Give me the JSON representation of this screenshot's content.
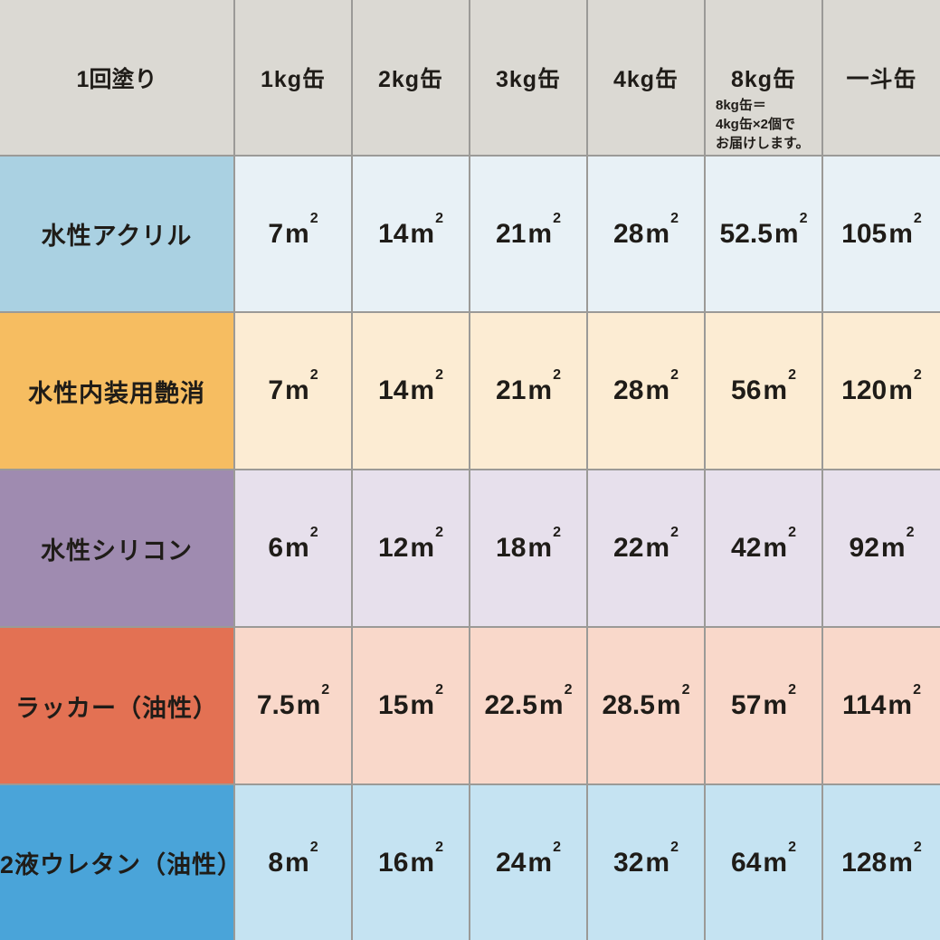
{
  "table": {
    "corner_label": "1回塗り",
    "unit": {
      "base": "m",
      "sup": "2"
    },
    "columns": [
      {
        "label": "1kg缶"
      },
      {
        "label": "2kg缶"
      },
      {
        "label": "3kg缶"
      },
      {
        "label": "4kg缶"
      },
      {
        "label": "8kg缶",
        "note_lines": [
          "8kg缶＝",
          "4kg缶×2個で",
          "お届けします。"
        ]
      },
      {
        "label": "一斗缶"
      }
    ],
    "rows": [
      {
        "label": "水性アクリル",
        "label_bg": "#aad1e2",
        "cell_bg": "#e8f1f6",
        "values": [
          "7",
          "14",
          "21",
          "28",
          "52.5",
          "105"
        ]
      },
      {
        "label": "水性内装用艶消",
        "label_bg": "#f6bd61",
        "cell_bg": "#fcecd3",
        "values": [
          "7",
          "14",
          "21",
          "28",
          "56",
          "120"
        ]
      },
      {
        "label": "水性シリコン",
        "label_bg": "#9f8bb0",
        "cell_bg": "#e7e0ec",
        "values": [
          "6",
          "12",
          "18",
          "22",
          "42",
          "92"
        ]
      },
      {
        "label": "ラッカー（油性）",
        "label_bg": "#e37153",
        "cell_bg": "#f9d8ca",
        "values": [
          "7.5",
          "15",
          "22.5",
          "28.5",
          "57",
          "114"
        ]
      },
      {
        "label": "2液ウレタン（油性）",
        "label_bg": "#4aa4d9",
        "cell_bg": "#c5e3f2",
        "values": [
          "8",
          "16",
          "24",
          "32",
          "64",
          "128"
        ]
      }
    ]
  },
  "colors": {
    "header_bg": "#dbd9d3",
    "grid_line": "#9b9a97",
    "text": "#1f1c18"
  },
  "chart_data": {
    "type": "table",
    "columns": [
      "1回塗り",
      "1kg缶",
      "2kg缶",
      "3kg缶",
      "4kg缶",
      "8kg缶",
      "一斗缶"
    ],
    "unit": "㎡",
    "note": "8kg缶＝4kg缶×2個でお届けします。",
    "series": [
      {
        "name": "水性アクリル",
        "values": [
          7,
          14,
          21,
          28,
          52.5,
          105
        ]
      },
      {
        "name": "水性内装用艶消",
        "values": [
          7,
          14,
          21,
          28,
          56,
          120
        ]
      },
      {
        "name": "水性シリコン",
        "values": [
          6,
          12,
          18,
          22,
          42,
          92
        ]
      },
      {
        "name": "ラッカー（油性）",
        "values": [
          7.5,
          15,
          22.5,
          28.5,
          57,
          114
        ]
      },
      {
        "name": "2液ウレタン（油性）",
        "values": [
          8,
          16,
          24,
          32,
          64,
          128
        ]
      }
    ]
  }
}
